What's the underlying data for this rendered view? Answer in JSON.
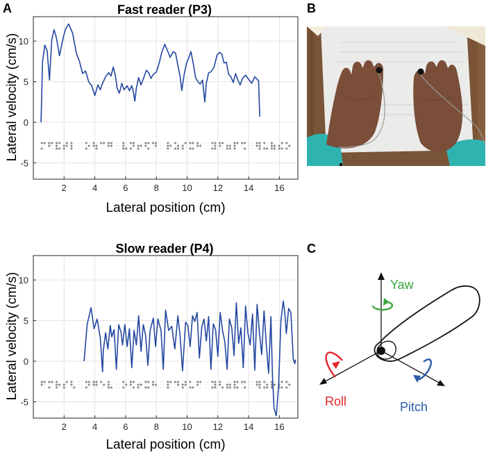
{
  "panel_letters": {
    "a": "A",
    "b": "B",
    "c": "C"
  },
  "chart_data": [
    {
      "type": "line",
      "title": "Fast reader (P3)",
      "xlabel": "Lateral position (cm)",
      "ylabel": "Lateral velocity (cm/s)",
      "xlim": [
        0,
        17.2
      ],
      "ylim": [
        -7,
        13
      ],
      "xticks": [
        2,
        4,
        6,
        8,
        10,
        12,
        14,
        16
      ],
      "yticks": [
        -5,
        0,
        5,
        10
      ],
      "grid": true,
      "line_color": "#2346a0",
      "braille_color": "#8c8c8c",
      "series": [
        {
          "x": [
            0.5,
            0.6,
            0.75,
            0.9,
            1.05,
            1.2,
            1.35,
            1.5,
            1.7,
            1.95,
            2.1,
            2.3,
            2.55,
            2.8,
            3.0,
            3.2,
            3.4,
            3.6,
            3.8,
            4.0,
            4.2,
            4.35,
            4.5,
            4.7,
            4.9,
            5.05,
            5.2,
            5.35,
            5.45,
            5.6,
            5.75,
            5.9,
            6.1,
            6.25,
            6.4,
            6.5,
            6.6,
            6.7,
            6.85,
            7.0,
            7.2,
            7.35,
            7.5,
            7.65,
            7.8,
            8.0,
            8.2,
            8.35,
            8.55,
            8.75,
            8.9,
            9.1,
            9.25,
            9.4,
            9.55,
            9.65,
            9.8,
            9.95,
            10.1,
            10.25,
            10.4,
            10.55,
            10.7,
            10.85,
            11.0,
            11.15,
            11.25,
            11.4,
            11.55,
            11.75,
            11.95,
            12.1,
            12.25,
            12.4,
            12.55,
            12.7,
            12.85,
            13.0,
            13.15,
            13.3,
            13.45,
            13.6,
            13.8,
            14.0,
            14.2,
            14.4,
            14.55,
            14.65,
            14.72
          ],
          "y": [
            0,
            7.5,
            9.5,
            8.8,
            5.2,
            10.2,
            11.4,
            10.4,
            8.2,
            10.5,
            11.5,
            12.1,
            11.0,
            8.5,
            7.5,
            6.0,
            6.3,
            5.0,
            4.5,
            3.3,
            4.6,
            4.0,
            4.8,
            5.6,
            6.1,
            5.7,
            6.8,
            5.6,
            4.2,
            3.6,
            4.8,
            4.0,
            4.5,
            3.9,
            4.5,
            3.8,
            2.6,
            4.2,
            5.5,
            4.6,
            5.6,
            6.4,
            6.1,
            5.4,
            5.9,
            6.2,
            7.4,
            8.6,
            9.6,
            8.7,
            8.0,
            8.7,
            8.5,
            7.0,
            5.6,
            3.9,
            5.8,
            7.2,
            7.9,
            8.7,
            7.2,
            5.5,
            5.0,
            4.7,
            5.2,
            2.5,
            4.8,
            6.1,
            6.2,
            6.8,
            8.3,
            8.6,
            8.4,
            7.3,
            7.4,
            5.9,
            5.6,
            4.9,
            6.0,
            5.2,
            4.6,
            5.4,
            5.8,
            5.3,
            4.8,
            5.6,
            5.3,
            5.1,
            0.7
          ]
        }
      ],
      "braille_cells": [
        [
          1,
          0,
          1,
          1,
          0,
          0
        ],
        [
          1,
          1,
          0,
          1,
          0,
          0
        ],
        [
          1,
          1,
          1,
          1,
          0,
          1
        ],
        [
          0,
          1,
          1,
          1,
          1,
          0
        ],
        [
          1,
          1,
          1,
          0,
          0,
          0
        ],
        [
          0,
          0,
          0,
          0,
          0,
          0
        ],
        [
          1,
          0,
          1,
          0,
          1,
          0
        ],
        [
          1,
          1,
          0,
          0,
          1,
          1
        ],
        [
          1,
          0,
          0,
          1,
          0,
          0
        ],
        [
          1,
          1,
          0,
          1,
          1,
          0
        ],
        [
          0,
          0,
          0,
          0,
          0,
          0
        ],
        [
          1,
          1,
          1,
          0,
          0,
          1
        ],
        [
          1,
          0,
          1,
          1,
          1,
          0
        ],
        [
          0,
          1,
          1,
          0,
          1,
          0
        ],
        [
          1,
          1,
          0,
          1,
          0,
          1
        ],
        [
          1,
          0,
          0,
          1,
          1,
          0
        ],
        [
          0,
          0,
          0,
          0,
          0,
          0
        ],
        [
          1,
          1,
          1,
          0,
          1,
          0
        ],
        [
          1,
          0,
          1,
          0,
          1,
          1
        ],
        [
          0,
          1,
          1,
          1,
          0,
          0
        ],
        [
          1,
          0,
          1,
          1,
          0,
          1
        ],
        [
          1,
          1,
          0,
          0,
          1,
          0
        ],
        [
          0,
          0,
          0,
          0,
          0,
          0
        ],
        [
          1,
          0,
          1,
          1,
          1,
          1
        ],
        [
          1,
          1,
          0,
          1,
          0,
          0
        ],
        [
          0,
          1,
          1,
          0,
          1,
          1
        ],
        [
          1,
          1,
          1,
          1,
          0,
          0
        ],
        [
          1,
          0,
          0,
          1,
          0,
          1
        ],
        [
          0,
          0,
          0,
          0,
          0,
          0
        ],
        [
          1,
          1,
          0,
          1,
          1,
          1
        ],
        [
          1,
          0,
          1,
          0,
          0,
          1
        ],
        [
          1,
          1,
          1,
          0,
          1,
          1
        ],
        [
          0,
          1,
          1,
          1,
          0,
          1
        ],
        [
          1,
          0,
          1,
          0,
          1,
          0
        ]
      ]
    },
    {
      "type": "line",
      "title": "Slow reader (P4)",
      "xlabel": "Lateral position (cm)",
      "ylabel": "Lateral velocity (cm/s)",
      "xlim": [
        0,
        17.2
      ],
      "ylim": [
        -7,
        13
      ],
      "xticks": [
        2,
        4,
        6,
        8,
        10,
        12,
        14,
        16
      ],
      "yticks": [
        -5,
        0,
        5,
        10
      ],
      "grid": true,
      "line_color": "#2346a0",
      "braille_color": "#8c8c8c",
      "series": [
        {
          "x": [
            3.3,
            3.5,
            3.75,
            3.95,
            4.15,
            4.35,
            4.5,
            4.55,
            4.7,
            4.85,
            5.0,
            5.1,
            5.25,
            5.4,
            5.55,
            5.7,
            5.8,
            5.95,
            6.1,
            6.25,
            6.4,
            6.55,
            6.7,
            6.85,
            7.0,
            7.15,
            7.3,
            7.45,
            7.6,
            7.8,
            7.95,
            8.1,
            8.3,
            8.45,
            8.6,
            8.8,
            9.0,
            9.2,
            9.4,
            9.55,
            9.7,
            9.9,
            10.05,
            10.2,
            10.35,
            10.5,
            10.65,
            10.8,
            10.95,
            11.1,
            11.25,
            11.4,
            11.55,
            11.7,
            11.85,
            12.0,
            12.15,
            12.3,
            12.45,
            12.6,
            12.75,
            12.9,
            13.05,
            13.2,
            13.35,
            13.5,
            13.65,
            13.8,
            13.95,
            14.1,
            14.25,
            14.4,
            14.55,
            14.7,
            14.85,
            15.0,
            15.15,
            15.3,
            15.45,
            15.55,
            15.65,
            15.8,
            15.95,
            16.1,
            16.25,
            16.35,
            16.45,
            16.6,
            16.75,
            16.9,
            17.0,
            17.05
          ],
          "y": [
            0,
            4.5,
            6.6,
            4.0,
            5.2,
            2.9,
            -1.3,
            1.3,
            3.5,
            1.5,
            4.4,
            3.0,
            3.9,
            -1.0,
            4.5,
            3.6,
            2.0,
            4.5,
            1.8,
            4.0,
            -0.8,
            3.8,
            2.0,
            5.6,
            1.2,
            4.5,
            3.2,
            -0.5,
            3.8,
            5.3,
            1.8,
            5.2,
            3.8,
            -1.0,
            6.3,
            3.8,
            4.3,
            1.5,
            5.6,
            3.0,
            -1.2,
            4.8,
            4.4,
            1.8,
            5.6,
            4.9,
            6.0,
            0.4,
            4.2,
            5.2,
            2.5,
            5.5,
            -1.0,
            4.6,
            3.9,
            0.6,
            6.0,
            3.8,
            2.4,
            -1.0,
            5.2,
            4.1,
            0.7,
            7.2,
            2.2,
            4.1,
            -0.8,
            6.8,
            3.5,
            2.0,
            5.8,
            -1.1,
            7.0,
            3.6,
            0.8,
            6.2,
            2.0,
            -1.5,
            5.5,
            -2.0,
            -5.8,
            -6.7,
            -3.0,
            5.0,
            7.4,
            6.0,
            3.4,
            6.5,
            6.0,
            0.3,
            -0.3,
            0.2
          ]
        }
      ],
      "braille_cells": [
        [
          1,
          1,
          0,
          1,
          0,
          0
        ],
        [
          1,
          0,
          1,
          1,
          0,
          0
        ],
        [
          1,
          1,
          1,
          0,
          1,
          0
        ],
        [
          0,
          1,
          1,
          1,
          0,
          0
        ],
        [
          1,
          1,
          0,
          0,
          0,
          1
        ],
        [
          0,
          0,
          0,
          0,
          0,
          0
        ],
        [
          1,
          0,
          1,
          1,
          1,
          0
        ],
        [
          1,
          1,
          0,
          1,
          1,
          0
        ],
        [
          1,
          0,
          0,
          0,
          1,
          0
        ],
        [
          1,
          1,
          1,
          0,
          0,
          1
        ],
        [
          0,
          0,
          0,
          0,
          0,
          0
        ],
        [
          1,
          0,
          1,
          0,
          1,
          0
        ],
        [
          1,
          1,
          0,
          1,
          0,
          1
        ],
        [
          0,
          1,
          1,
          0,
          1,
          0
        ],
        [
          1,
          0,
          1,
          1,
          0,
          1
        ],
        [
          1,
          1,
          0,
          0,
          1,
          0
        ],
        [
          0,
          0,
          0,
          0,
          0,
          0
        ],
        [
          1,
          1,
          1,
          1,
          0,
          0
        ],
        [
          1,
          0,
          0,
          1,
          1,
          0
        ],
        [
          0,
          1,
          1,
          1,
          1,
          0
        ],
        [
          1,
          0,
          1,
          0,
          0,
          1
        ],
        [
          1,
          1,
          0,
          1,
          0,
          0
        ],
        [
          0,
          0,
          0,
          0,
          0,
          0
        ],
        [
          1,
          0,
          1,
          1,
          1,
          1
        ],
        [
          1,
          1,
          0,
          0,
          0,
          1
        ],
        [
          0,
          1,
          1,
          0,
          1,
          1
        ],
        [
          1,
          1,
          1,
          1,
          0,
          1
        ],
        [
          1,
          0,
          0,
          1,
          0,
          1
        ],
        [
          0,
          0,
          0,
          0,
          0,
          0
        ],
        [
          1,
          1,
          0,
          1,
          1,
          1
        ],
        [
          1,
          0,
          1,
          0,
          1,
          1
        ],
        [
          1,
          1,
          1,
          0,
          1,
          0
        ],
        [
          0,
          1,
          1,
          1,
          0,
          1
        ],
        [
          1,
          0,
          1,
          0,
          1,
          0
        ]
      ]
    }
  ],
  "diagram": {
    "yaw": {
      "label": "Yaw",
      "color": "#3aa640"
    },
    "roll": {
      "label": "Roll",
      "color": "#e0262b"
    },
    "pitch": {
      "label": "Pitch",
      "color": "#2b5aa8"
    }
  }
}
